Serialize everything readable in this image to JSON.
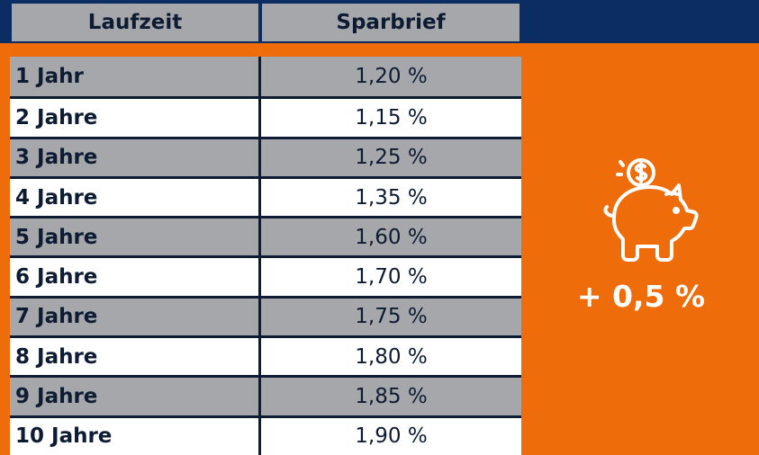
{
  "table": {
    "header": {
      "col1": "Laufzeit",
      "col2": "Sparbrief"
    },
    "rows": [
      {
        "term": "1 Jahr",
        "rate": "1,20 %"
      },
      {
        "term": "2 Jahre",
        "rate": "1,15 %"
      },
      {
        "term": "3 Jahre",
        "rate": "1,25 %"
      },
      {
        "term": "4 Jahre",
        "rate": "1,35 %"
      },
      {
        "term": "5 Jahre",
        "rate": "1,60 %"
      },
      {
        "term": "6 Jahre",
        "rate": "1,70 %"
      },
      {
        "term": "7 Jahre",
        "rate": "1,75 %"
      },
      {
        "term": "8 Jahre",
        "rate": "1,80 %"
      },
      {
        "term": "9 Jahre",
        "rate": "1,85 %"
      },
      {
        "term": "10 Jahre",
        "rate": "1,90 %"
      }
    ]
  },
  "bonus": {
    "icon": "piggy-bank-icon",
    "text": "+ 0,5 %"
  },
  "colors": {
    "navy": "#0c2d63",
    "orange": "#ee6c0a",
    "grey": "#a6a7aa",
    "white": "#ffffff"
  }
}
